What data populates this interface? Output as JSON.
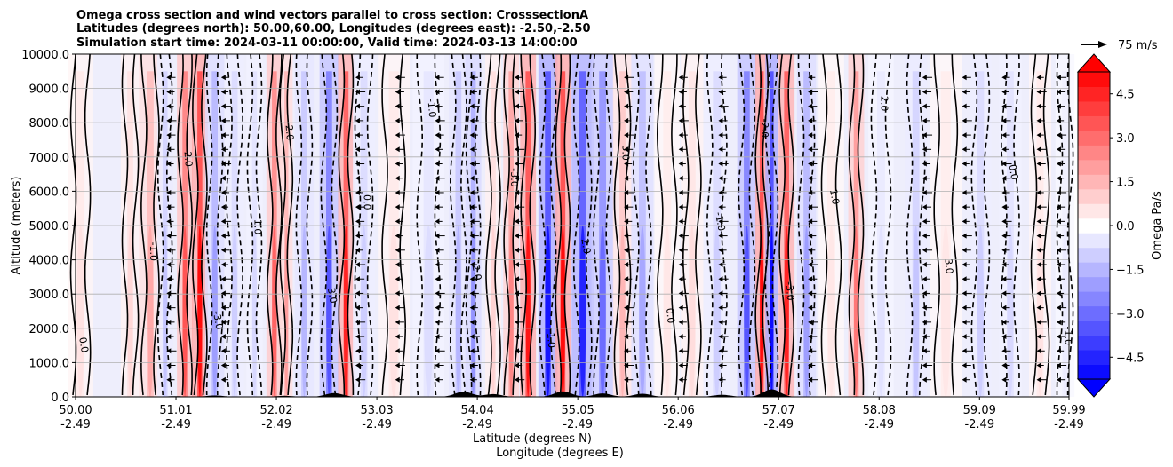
{
  "chart_data": {
    "type": "heatmap",
    "title_lines": [
      "Omega cross section and wind vectors parallel to cross section: CrosssectionA",
      "Latitudes (degrees north): 50.00,60.00, Longitudes (degrees east): -2.50,-2.50",
      "Simulation start time: 2024-03-11 00:00:00, Valid time: 2024-03-13 14:00:00"
    ],
    "xlabel": "Latitude (degrees N)",
    "xlabel2": "Longitude (degrees E)",
    "ylabel": "Altitude (meters)",
    "xlim": [
      50.0,
      59.99
    ],
    "ylim": [
      0,
      10000
    ],
    "x_ticks": [
      {
        "lat": "50.00",
        "lon": "-2.49",
        "value": 50.0
      },
      {
        "lat": "51.01",
        "lon": "-2.49",
        "value": 51.01
      },
      {
        "lat": "52.02",
        "lon": "-2.49",
        "value": 52.02
      },
      {
        "lat": "53.03",
        "lon": "-2.49",
        "value": 53.03
      },
      {
        "lat": "54.04",
        "lon": "-2.49",
        "value": 54.04
      },
      {
        "lat": "55.05",
        "lon": "-2.49",
        "value": 55.05
      },
      {
        "lat": "56.06",
        "lon": "-2.49",
        "value": 56.06
      },
      {
        "lat": "57.07",
        "lon": "-2.49",
        "value": 57.07
      },
      {
        "lat": "58.08",
        "lon": "-2.49",
        "value": 58.08
      },
      {
        "lat": "59.09",
        "lon": "-2.49",
        "value": 59.09
      },
      {
        "lat": "59.99",
        "lon": "-2.49",
        "value": 59.99
      }
    ],
    "y_ticks": [
      {
        "label": "0.0",
        "value": 0
      },
      {
        "label": "1000.0",
        "value": 1000
      },
      {
        "label": "2000.0",
        "value": 2000
      },
      {
        "label": "3000.0",
        "value": 3000
      },
      {
        "label": "4000.0",
        "value": 4000
      },
      {
        "label": "5000.0",
        "value": 5000
      },
      {
        "label": "6000.0",
        "value": 6000
      },
      {
        "label": "7000.0",
        "value": 7000
      },
      {
        "label": "8000.0",
        "value": 8000
      },
      {
        "label": "9000.0",
        "value": 9000
      },
      {
        "label": "10000.0",
        "value": 10000
      }
    ],
    "grid": "horizontal",
    "colorbar": {
      "label": "Omega Pa/s",
      "range": [
        -5.25,
        5.25
      ],
      "extend": "both",
      "ticks": [
        {
          "label": "4.5",
          "value": 4.5
        },
        {
          "label": "3.0",
          "value": 3.0
        },
        {
          "label": "1.5",
          "value": 1.5
        },
        {
          "label": "0.0",
          "value": 0.0
        },
        {
          "label": "−1.5",
          "value": -1.5
        },
        {
          "label": "−3.0",
          "value": -3.0
        },
        {
          "label": "−4.5",
          "value": -4.5
        }
      ],
      "neg_color": "#0000ff",
      "pos_color": "#ff0000",
      "mid_color": "#ffffff"
    },
    "quiver_key": {
      "label": "75 m/s",
      "value": 75
    },
    "contour_labels": [
      "0.0",
      "1.0",
      "-1.0",
      "2.0",
      "-2.0",
      "3.0",
      "-3.0"
    ],
    "omega_bands": [
      {
        "lat": 50.05,
        "value": 0.6,
        "width": 0.08
      },
      {
        "lat": 50.55,
        "value": 0.8,
        "width": 0.06
      },
      {
        "lat": 50.75,
        "value": 1.8,
        "width": 0.07
      },
      {
        "lat": 50.9,
        "value": -1.2,
        "width": 0.05
      },
      {
        "lat": 51.1,
        "value": 3.5,
        "width": 0.05
      },
      {
        "lat": 51.25,
        "value": 5.0,
        "width": 0.05
      },
      {
        "lat": 51.4,
        "value": -2.0,
        "width": 0.06
      },
      {
        "lat": 51.6,
        "value": -1.0,
        "width": 0.06
      },
      {
        "lat": 51.8,
        "value": -0.8,
        "width": 0.05
      },
      {
        "lat": 52.0,
        "value": 3.2,
        "width": 0.05
      },
      {
        "lat": 52.12,
        "value": 2.0,
        "width": 0.04
      },
      {
        "lat": 52.3,
        "value": -1.5,
        "width": 0.06
      },
      {
        "lat": 52.55,
        "value": -3.5,
        "width": 0.06
      },
      {
        "lat": 52.72,
        "value": 4.5,
        "width": 0.05
      },
      {
        "lat": 52.9,
        "value": -1.0,
        "width": 0.07
      },
      {
        "lat": 53.2,
        "value": 0.6,
        "width": 0.1
      },
      {
        "lat": 53.55,
        "value": -0.7,
        "width": 0.1
      },
      {
        "lat": 53.85,
        "value": -1.5,
        "width": 0.06
      },
      {
        "lat": 54.0,
        "value": -2.2,
        "width": 0.05
      },
      {
        "lat": 54.2,
        "value": 0.9,
        "width": 0.05
      },
      {
        "lat": 54.38,
        "value": 2.5,
        "width": 0.05
      },
      {
        "lat": 54.55,
        "value": 4.8,
        "width": 0.05
      },
      {
        "lat": 54.75,
        "value": -4.8,
        "width": 0.06
      },
      {
        "lat": 54.9,
        "value": 5.0,
        "width": 0.05
      },
      {
        "lat": 55.1,
        "value": -4.5,
        "width": 0.07
      },
      {
        "lat": 55.3,
        "value": -3.0,
        "width": 0.07
      },
      {
        "lat": 55.5,
        "value": 1.5,
        "width": 0.06
      },
      {
        "lat": 55.7,
        "value": -1.8,
        "width": 0.07
      },
      {
        "lat": 55.95,
        "value": 0.5,
        "width": 0.08
      },
      {
        "lat": 56.2,
        "value": 0.7,
        "width": 0.07
      },
      {
        "lat": 56.45,
        "value": -1.0,
        "width": 0.08
      },
      {
        "lat": 56.75,
        "value": -3.5,
        "width": 0.06
      },
      {
        "lat": 56.9,
        "value": 5.0,
        "width": 0.04
      },
      {
        "lat": 57.0,
        "value": -5.0,
        "width": 0.04
      },
      {
        "lat": 57.15,
        "value": 4.5,
        "width": 0.05
      },
      {
        "lat": 57.35,
        "value": -2.0,
        "width": 0.06
      },
      {
        "lat": 57.6,
        "value": 0.5,
        "width": 0.08
      },
      {
        "lat": 57.85,
        "value": 2.8,
        "width": 0.05
      },
      {
        "lat": 58.1,
        "value": -0.6,
        "width": 0.08
      },
      {
        "lat": 58.45,
        "value": -1.2,
        "width": 0.07
      },
      {
        "lat": 58.75,
        "value": 0.5,
        "width": 0.1
      },
      {
        "lat": 59.1,
        "value": -1.0,
        "width": 0.07
      },
      {
        "lat": 59.4,
        "value": -0.8,
        "width": 0.07
      },
      {
        "lat": 59.7,
        "value": 0.6,
        "width": 0.07
      },
      {
        "lat": 59.95,
        "value": -0.4,
        "width": 0.06
      }
    ]
  }
}
